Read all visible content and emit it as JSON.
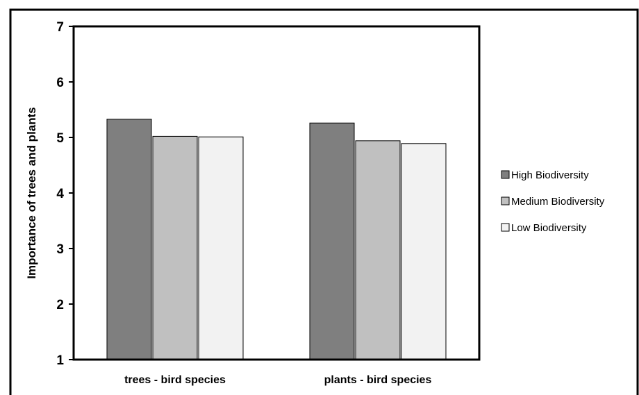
{
  "chart_data": {
    "type": "bar",
    "title": "",
    "xlabel": "",
    "ylabel": "Importance of trees and plants",
    "ylim": [
      1,
      7
    ],
    "yticks": [
      "1",
      "2",
      "3",
      "4",
      "5",
      "6",
      "7"
    ],
    "categories": [
      "trees - bird species",
      "plants - bird species"
    ],
    "series": [
      {
        "name": "High Biodiversity",
        "color": "#7f7f7f",
        "values": [
          5.33,
          5.26
        ]
      },
      {
        "name": "Medium Biodiversity",
        "color": "#c0c0c0",
        "values": [
          5.02,
          4.94
        ]
      },
      {
        "name": "Low Biodiversity",
        "color": "#f2f2f2",
        "values": [
          5.01,
          4.89
        ]
      }
    ],
    "grid": false,
    "legend_position": "right"
  }
}
